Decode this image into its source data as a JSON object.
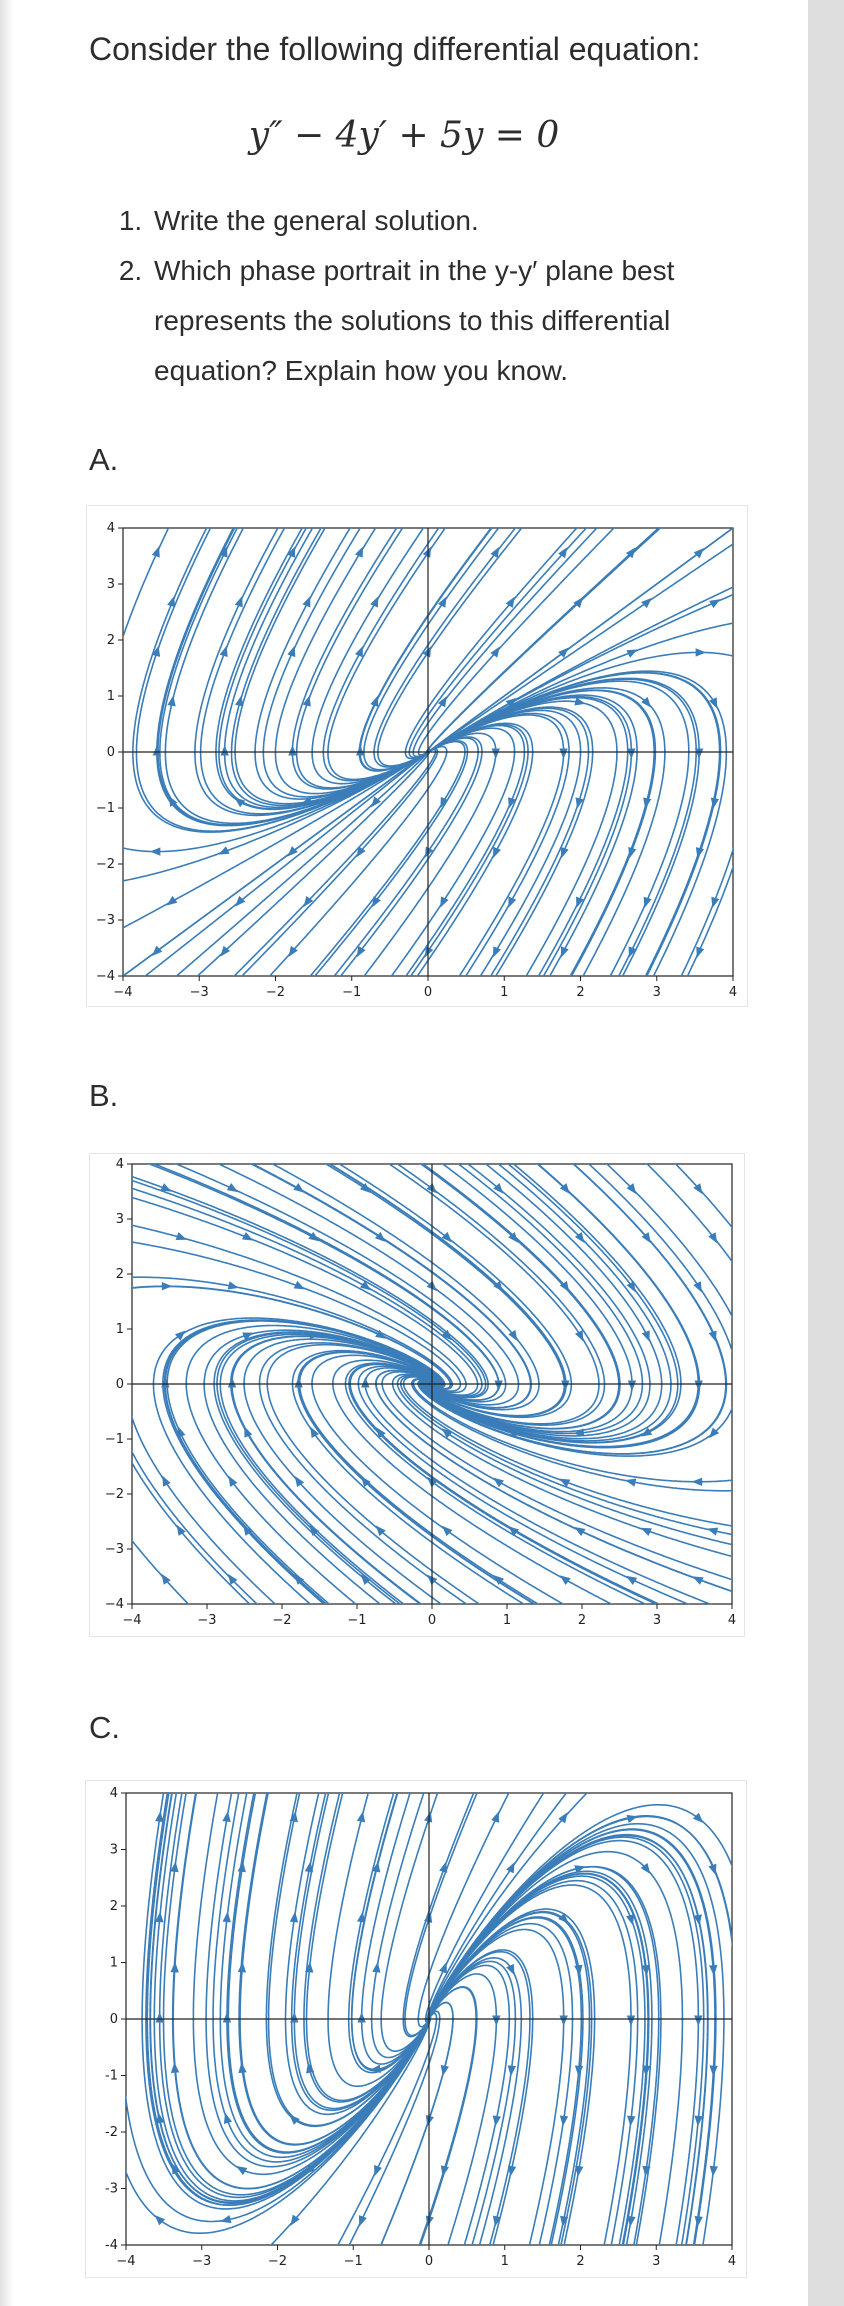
{
  "problem": {
    "intro": "Consider the following differential equation:",
    "equation": "y″ − 4y′ + 5y = 0",
    "questions": [
      "Write the general solution.",
      "Which phase portrait in the y-y′ plane best represents the solutions to this differential equation? Explain how you know."
    ]
  },
  "options": [
    {
      "label": "A."
    },
    {
      "label": "B."
    },
    {
      "label": "C."
    }
  ],
  "chart_data": [
    {
      "type": "streamplot",
      "option": "A.",
      "x_ticks": [
        "−4",
        "−3",
        "−2",
        "−1",
        "0",
        "1",
        "2",
        "3",
        "4"
      ],
      "y_ticks": [
        "4",
        "3",
        "2",
        "1",
        "0",
        "−1",
        "−2",
        "−3",
        "−4"
      ],
      "xlim": [
        -4,
        4
      ],
      "ylim": [
        -4,
        4
      ],
      "line_color": "#3a7db8"
    },
    {
      "type": "streamplot",
      "option": "B.",
      "x_ticks": [
        "−4",
        "−3",
        "−2",
        "−1",
        "0",
        "1",
        "2",
        "3",
        "4"
      ],
      "y_ticks": [
        "4",
        "3",
        "2",
        "1",
        "0",
        "−1",
        "−2",
        "−3",
        "−4"
      ],
      "xlim": [
        -4,
        4
      ],
      "ylim": [
        -4,
        4
      ],
      "line_color": "#3a7db8"
    },
    {
      "type": "streamplot",
      "option": "C.",
      "x_ticks": [
        "−4",
        "−3",
        "−2",
        "−1",
        "0",
        "1",
        "2",
        "3",
        "4"
      ],
      "y_ticks": [
        "4",
        "3",
        "2",
        "1",
        "0",
        "-1",
        "-2",
        "-3",
        "-4"
      ],
      "xlim": [
        -4,
        4
      ],
      "ylim": [
        -4,
        4
      ],
      "line_color": "#3a7db8"
    }
  ]
}
